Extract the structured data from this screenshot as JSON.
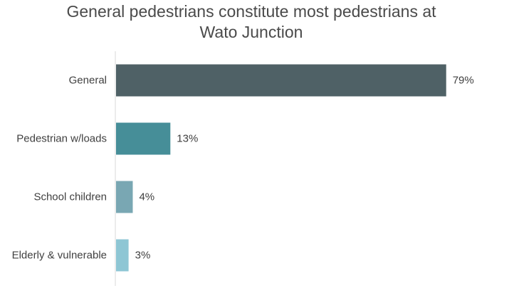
{
  "chart_data": {
    "type": "bar",
    "orientation": "horizontal",
    "title_lines": [
      "General pedestrians constitute most pedestrians at",
      "Wato Junction"
    ],
    "categories": [
      "General",
      "Pedestrian w/loads",
      "School children",
      "Elderly & vulnerable"
    ],
    "values": [
      79,
      13,
      4,
      3
    ],
    "value_labels": [
      "79%",
      "13%",
      "4%",
      "3%"
    ],
    "bar_colors": [
      "#4f6166",
      "#468e98",
      "#79a7b3",
      "#8ec6d4"
    ],
    "xlim": [
      0,
      100
    ],
    "grid": false,
    "legend": "none"
  }
}
